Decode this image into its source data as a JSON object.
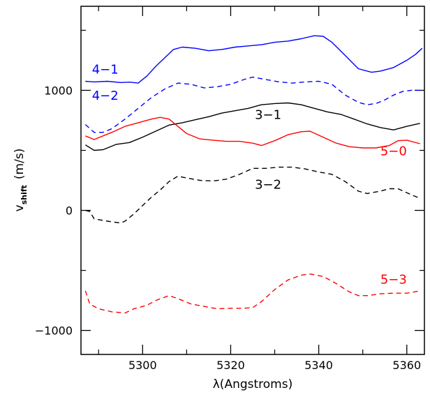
{
  "chart_data": {
    "type": "line",
    "xlabel": "λ(Angstroms)",
    "ylabel_main": "v",
    "ylabel_sub": "shift",
    "ylabel_units": "(m/s)",
    "xlim": [
      5286,
      5364
    ],
    "ylim": [
      -1200,
      1700
    ],
    "xticks_major": [
      5300,
      5320,
      5340,
      5360
    ],
    "xticks_minor": [
      5290,
      5310,
      5330,
      5350
    ],
    "yticks_major": [
      -1000,
      0,
      1000
    ],
    "yticks_minor": [
      -500,
      500,
      1500
    ],
    "grid": false,
    "series": [
      {
        "name": "4-1",
        "color": "#0000ff",
        "dash": "solid",
        "x": [
          5287,
          5289,
          5292,
          5295,
          5297,
          5299,
          5301,
          5303,
          5305,
          5307,
          5309,
          5312,
          5315,
          5318,
          5321,
          5324,
          5327,
          5330,
          5333,
          5336,
          5339,
          5341,
          5343,
          5346,
          5349,
          5352,
          5354,
          5357,
          5360,
          5362,
          5363.5
        ],
        "y": [
          1075,
          1070,
          1075,
          1065,
          1068,
          1060,
          1120,
          1200,
          1270,
          1340,
          1360,
          1350,
          1330,
          1340,
          1360,
          1370,
          1380,
          1400,
          1410,
          1430,
          1455,
          1450,
          1400,
          1290,
          1180,
          1150,
          1160,
          1190,
          1250,
          1300,
          1350
        ]
      },
      {
        "name": "4-2",
        "color": "#0000ff",
        "dash": "dashed",
        "x": [
          5287,
          5289,
          5291,
          5293,
          5296,
          5299,
          5302,
          5305,
          5308,
          5311,
          5314,
          5317,
          5320,
          5323,
          5325,
          5328,
          5331,
          5334,
          5337,
          5340,
          5343,
          5346,
          5349,
          5351,
          5353,
          5355,
          5357,
          5359,
          5361,
          5363
        ],
        "y": [
          715,
          650,
          650,
          680,
          760,
          850,
          940,
          1010,
          1060,
          1050,
          1020,
          1030,
          1050,
          1090,
          1110,
          1090,
          1070,
          1060,
          1070,
          1075,
          1050,
          960,
          900,
          880,
          890,
          920,
          960,
          990,
          1000,
          1000
        ]
      },
      {
        "name": "3-1",
        "color": "#000000",
        "dash": "solid",
        "x": [
          5287,
          5289,
          5291,
          5294,
          5297,
          5300,
          5303,
          5306,
          5309,
          5312,
          5315,
          5318,
          5321,
          5324,
          5327,
          5330,
          5333,
          5336,
          5339,
          5342,
          5345,
          5348,
          5351,
          5354,
          5357,
          5360,
          5363
        ],
        "y": [
          545,
          500,
          505,
          550,
          565,
          610,
          660,
          710,
          730,
          755,
          780,
          810,
          830,
          850,
          880,
          890,
          895,
          880,
          850,
          820,
          800,
          760,
          720,
          690,
          670,
          700,
          725
        ]
      },
      {
        "name": "3-2",
        "color": "#000000",
        "dash": "dashed",
        "x": [
          5287,
          5288,
          5289,
          5292,
          5295,
          5296,
          5298,
          5300,
          5302,
          5304,
          5306,
          5308,
          5310,
          5313,
          5316,
          5319,
          5322,
          5325,
          5328,
          5331,
          5334,
          5337,
          5340,
          5343,
          5346,
          5349,
          5351,
          5354,
          5356,
          5358,
          5361,
          5363
        ],
        "y": [
          0,
          -10,
          -70,
          -90,
          -105,
          -90,
          -30,
          40,
          110,
          170,
          240,
          285,
          270,
          250,
          245,
          260,
          300,
          350,
          350,
          360,
          360,
          345,
          320,
          300,
          240,
          160,
          140,
          160,
          180,
          180,
          130,
          100
        ]
      },
      {
        "name": "5-0",
        "color": "#ff0000",
        "dash": "solid",
        "x": [
          5287,
          5289,
          5291,
          5293,
          5296,
          5299,
          5302,
          5304,
          5306,
          5308,
          5310,
          5313,
          5316,
          5319,
          5322,
          5325,
          5327,
          5330,
          5333,
          5336,
          5338,
          5341,
          5344,
          5347,
          5350,
          5353,
          5356,
          5358,
          5360,
          5363
        ],
        "y": [
          620,
          590,
          620,
          650,
          700,
          730,
          760,
          775,
          760,
          700,
          640,
          595,
          585,
          575,
          575,
          560,
          540,
          580,
          630,
          655,
          660,
          610,
          560,
          530,
          520,
          520,
          540,
          580,
          585,
          555
        ]
      },
      {
        "name": "5-3",
        "color": "#ff0000",
        "dash": "dashed",
        "x": [
          5287,
          5288,
          5290,
          5293,
          5296,
          5298,
          5301,
          5303,
          5306,
          5308,
          5311,
          5314,
          5317,
          5320,
          5323,
          5325,
          5327,
          5330,
          5333,
          5336,
          5338,
          5341,
          5344,
          5347,
          5349,
          5351,
          5354,
          5357,
          5360,
          5363
        ],
        "y": [
          -670,
          -780,
          -820,
          -845,
          -855,
          -820,
          -790,
          -750,
          -710,
          -735,
          -780,
          -800,
          -820,
          -815,
          -815,
          -810,
          -760,
          -660,
          -580,
          -540,
          -530,
          -550,
          -610,
          -680,
          -710,
          -710,
          -695,
          -690,
          -690,
          -670
        ]
      }
    ],
    "labels": [
      {
        "text": "4-1",
        "color": "#0000ff",
        "x": 5291.5,
        "y": 1140
      },
      {
        "text": "4-2",
        "color": "#0000ff",
        "x": 5291.5,
        "y": 920
      },
      {
        "text": "3-1",
        "color": "#000000",
        "x": 5328.5,
        "y": 760
      },
      {
        "text": "5-0",
        "color": "#ff0000",
        "x": 5357,
        "y": 460
      },
      {
        "text": "3-2",
        "color": "#000000",
        "x": 5328.5,
        "y": 180
      },
      {
        "text": "5-3",
        "color": "#ff0000",
        "x": 5357,
        "y": -610
      }
    ]
  }
}
